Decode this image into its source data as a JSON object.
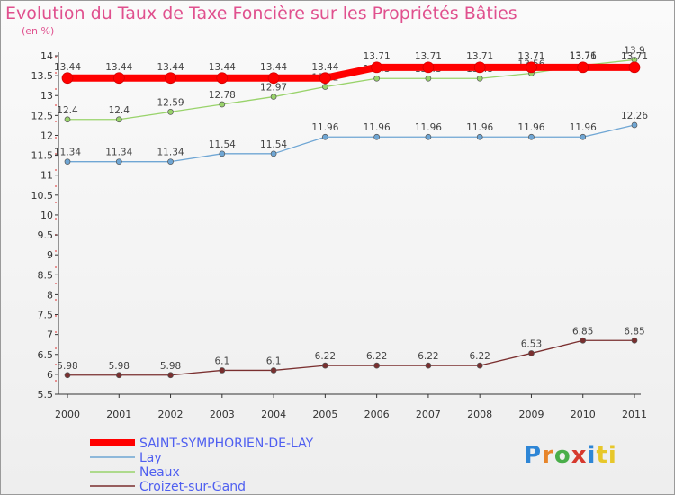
{
  "title": "Evolution du Taux de Taxe Foncière sur les Propriétés Bâties",
  "unit": "(en %)",
  "brand": [
    "P",
    "r",
    "o",
    "x",
    "i",
    "ti"
  ],
  "chart_data": {
    "type": "line",
    "x": [
      "2000",
      "2001",
      "2002",
      "2003",
      "2004",
      "2005",
      "2006",
      "2007",
      "2008",
      "2009",
      "2010",
      "2011"
    ],
    "ylim": [
      5.5,
      14
    ],
    "yticks": [
      "5.5",
      "6",
      "6.5",
      "7",
      "7.5",
      "8",
      "8.5",
      "9",
      "9.5",
      "10",
      "10.5",
      "11",
      "11.5",
      "12",
      "12.5",
      "13",
      "13.5",
      "14"
    ],
    "grid": false,
    "legend_position": "bottom-left",
    "series": [
      {
        "name": "SAINT-SYMPHORIEN-DE-LAY",
        "color": "#ff0000",
        "values": [
          13.44,
          13.44,
          13.44,
          13.44,
          13.44,
          13.44,
          13.71,
          13.71,
          13.71,
          13.71,
          13.71,
          13.71
        ],
        "labels": [
          "13.44",
          "13.44",
          "13.44",
          "13.44",
          "13.44",
          "13.44",
          "13.71",
          "13.71",
          "13.71",
          "13.71",
          "13.71",
          "13.71"
        ]
      },
      {
        "name": "Lay",
        "color": "#6fa6d4",
        "values": [
          11.34,
          11.34,
          11.34,
          11.54,
          11.54,
          11.96,
          11.96,
          11.96,
          11.96,
          11.96,
          11.96,
          12.26
        ],
        "labels": [
          "11.34",
          "11.34",
          "11.34",
          "11.54",
          "11.54",
          "11.96",
          "11.96",
          "11.96",
          "11.96",
          "11.96",
          "11.96",
          "12.26"
        ]
      },
      {
        "name": "Neaux",
        "color": "#99d36b",
        "values": [
          12.4,
          12.4,
          12.59,
          12.78,
          12.97,
          13.22,
          13.43,
          13.43,
          13.43,
          13.56,
          13.76,
          13.9
        ],
        "labels": [
          "12.4",
          "12.4",
          "12.59",
          "12.78",
          "12.97",
          "13.22",
          "13.43",
          "13.43",
          "13.43",
          "13.56",
          "13.76",
          "13.9"
        ]
      },
      {
        "name": "Croizet-sur-Gand",
        "color": "#7a2f2f",
        "values": [
          5.98,
          5.98,
          5.98,
          6.1,
          6.1,
          6.22,
          6.22,
          6.22,
          6.22,
          6.53,
          6.85,
          6.85
        ],
        "labels": [
          "5.98",
          "5.98",
          "5.98",
          "6.1",
          "6.1",
          "6.22",
          "6.22",
          "6.22",
          "6.22",
          "6.53",
          "6.85",
          "6.85"
        ]
      }
    ]
  }
}
